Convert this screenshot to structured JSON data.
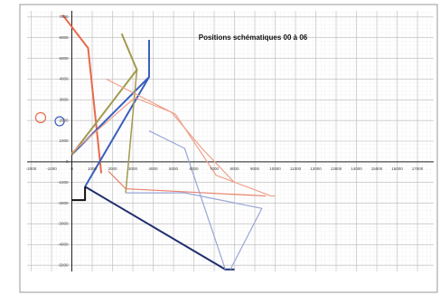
{
  "chart_data": {
    "type": "line",
    "title": "Positions schématiques 00 à 06",
    "xlim": [
      -2200,
      17800
    ],
    "ylim": [
      -5300,
      7300
    ],
    "xticks": [
      -2000,
      -1000,
      0,
      1000,
      2000,
      3000,
      4000,
      5000,
      6000,
      7000,
      8000,
      9000,
      10000,
      11000,
      12000,
      13000,
      14000,
      15000,
      16000,
      17000
    ],
    "yticks": [
      -5000,
      -4000,
      -3000,
      -2000,
      -1000,
      0,
      1000,
      2000,
      3000,
      4000,
      5000,
      6000,
      7000
    ],
    "grid": true,
    "series": [
      {
        "color": "#e8694a",
        "width": 2,
        "x": [
          -450,
          800,
          1450
        ],
        "values": [
          7100,
          5500,
          -550
        ]
      },
      {
        "color": "#3a5fc0",
        "width": 2,
        "x": [
          0,
          3800,
          3800
        ],
        "values": [
          350,
          4100,
          5900
        ]
      },
      {
        "color": "#3a5fc0",
        "width": 2,
        "x": [
          650,
          3800
        ],
        "values": [
          -1200,
          4100
        ]
      },
      {
        "color": "#1f2f6e",
        "width": 2,
        "x": [
          650,
          7550,
          8000
        ],
        "values": [
          -1200,
          -5200,
          -5200
        ]
      },
      {
        "color": "#111111",
        "width": 2,
        "x": [
          0,
          650,
          650
        ],
        "values": [
          -1850,
          -1850,
          -1200
        ]
      },
      {
        "color": "#a39a4e",
        "width": 2,
        "x": [
          0,
          3200,
          2450
        ],
        "values": [
          350,
          4450,
          6200
        ]
      },
      {
        "color": "#a39a4e",
        "width": 1.5,
        "x": [
          3200,
          2650
        ],
        "values": [
          4450,
          -1500
        ]
      },
      {
        "color": "#f0a08a",
        "width": 1.2,
        "x": [
          1700,
          5100,
          7100,
          9800,
          10000
        ],
        "values": [
          4000,
          2300,
          -650,
          -1650,
          -1650
        ]
      },
      {
        "color": "#e8806a",
        "width": 1.2,
        "x": [
          1800,
          2650,
          9550
        ],
        "values": [
          -450,
          -1300,
          -1650
        ]
      },
      {
        "color": "#f0a08a",
        "width": 1.2,
        "x": [
          0,
          3100,
          4900,
          6400,
          8000
        ],
        "values": [
          450,
          3100,
          2400,
          650,
          -1000
        ]
      },
      {
        "color": "#9aa6d6",
        "width": 1.2,
        "x": [
          3800,
          5550,
          7550
        ],
        "values": [
          1500,
          650,
          -5200
        ]
      },
      {
        "color": "#9aa6d6",
        "width": 1.2,
        "x": [
          2650,
          5550,
          9350,
          7800
        ],
        "values": [
          -1500,
          -1500,
          -2250,
          -5200
        ]
      }
    ]
  }
}
